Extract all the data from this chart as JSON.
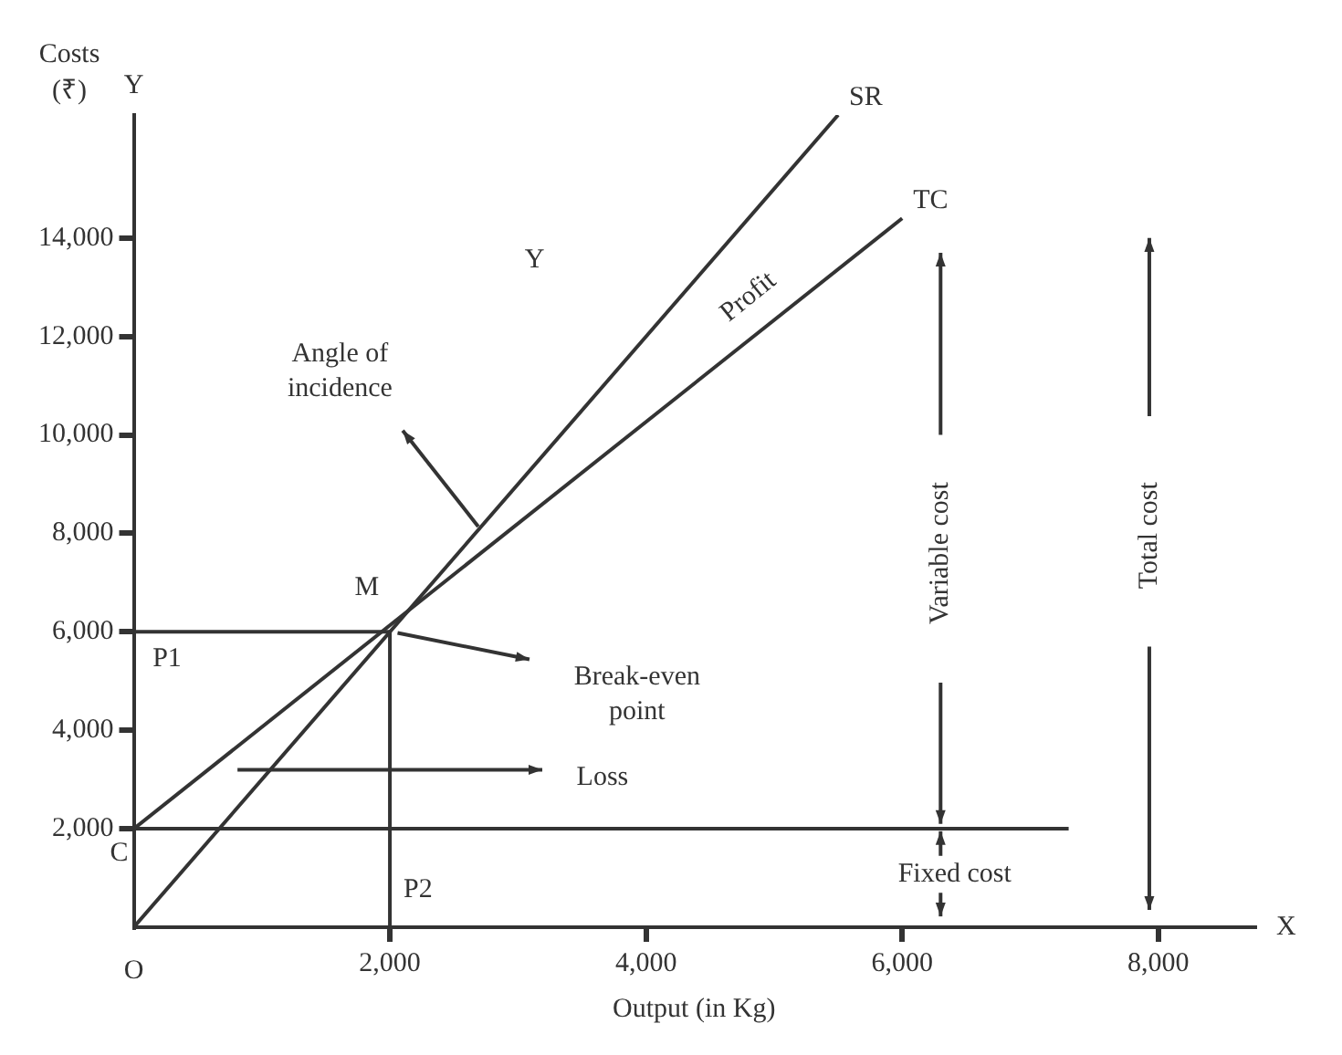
{
  "chart_data": {
    "type": "line",
    "xlabel": "Output (in Kg)",
    "ylabel": "Costs (₹)",
    "xlim": [
      0,
      8750
    ],
    "ylim": [
      0,
      16500
    ],
    "xticks": [
      {
        "value": 2000,
        "label": "2,000"
      },
      {
        "value": 4000,
        "label": "4,000"
      },
      {
        "value": 6000,
        "label": "6,000"
      },
      {
        "value": 8000,
        "label": "8,000"
      }
    ],
    "yticks": [
      {
        "value": 2000,
        "label": "2,000"
      },
      {
        "value": 4000,
        "label": "4,000"
      },
      {
        "value": 6000,
        "label": "6,000"
      },
      {
        "value": 8000,
        "label": "8,000"
      },
      {
        "value": 10000,
        "label": "10,000"
      },
      {
        "value": 12000,
        "label": "12,000"
      },
      {
        "value": 14000,
        "label": "14,000"
      }
    ],
    "series": [
      {
        "name": "SR",
        "color": "#333333",
        "x": [
          0,
          5500
        ],
        "values": [
          0,
          16500
        ]
      },
      {
        "name": "TC",
        "color": "#333333",
        "x": [
          0,
          6000
        ],
        "values": [
          2000,
          14400
        ]
      },
      {
        "color": "#333333",
        "x": [
          0,
          7300
        ],
        "values": [
          2000,
          2000
        ]
      },
      {
        "color": "#333333",
        "x": [
          0,
          2000
        ],
        "values": [
          6000,
          6000
        ]
      },
      {
        "color": "#333333",
        "x": [
          2000,
          2000
        ],
        "values": [
          0,
          6000
        ]
      }
    ],
    "annotations": [
      "Y",
      "X",
      "O",
      "Y",
      "Profit",
      "Angle of incidence",
      "M",
      "P1",
      "Break-even point",
      "Loss",
      "C",
      "P2",
      "Fixed cost",
      "Variable cost",
      "Total cost"
    ],
    "grid": false,
    "legend": false,
    "marker": "none",
    "line_style": "solid"
  }
}
